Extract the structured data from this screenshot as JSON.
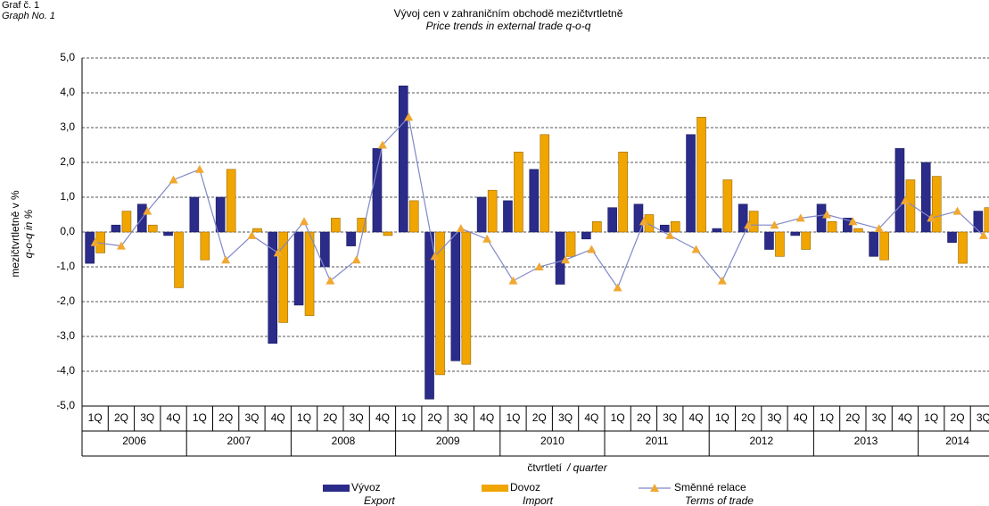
{
  "graph_label": "Graf č. 1",
  "graph_label_en": "Graph No. 1",
  "chart_data": {
    "type": "bar-line",
    "title": "Vývoj cen v zahraničním obchodě mezičtvrtletně",
    "subtitle": "Price trends in external trade q-o-q",
    "y_label": "mezičtvrtletně v %",
    "y_label_en": "q-o-q  in %",
    "x_label": "čtvrtletí",
    "x_label_en": "/ quarter",
    "categories": [
      "1Q",
      "2Q",
      "3Q",
      "4Q",
      "1Q",
      "2Q",
      "3Q",
      "4Q",
      "1Q",
      "2Q",
      "3Q",
      "4Q",
      "1Q",
      "2Q",
      "3Q",
      "4Q",
      "1Q",
      "2Q",
      "3Q",
      "4Q",
      "1Q",
      "2Q",
      "3Q",
      "4Q",
      "1Q",
      "2Q",
      "3Q",
      "4Q",
      "1Q",
      "2Q",
      "3Q",
      "4Q",
      "1Q",
      "2Q",
      "3Q"
    ],
    "years": [
      "2006",
      "2007",
      "2008",
      "2009",
      "2010",
      "2011",
      "2012",
      "2013",
      "2014"
    ],
    "series": [
      {
        "name": "Vývoz",
        "name_en": "Export",
        "kind": "bar",
        "color": "#2b2b8a",
        "values": [
          -0.9,
          0.2,
          0.8,
          -0.1,
          1.0,
          1.0,
          0.0,
          -3.2,
          -2.1,
          -1.0,
          -0.4,
          2.4,
          4.2,
          -4.8,
          -3.7,
          1.0,
          0.9,
          1.8,
          -1.5,
          -0.2,
          0.7,
          0.8,
          0.2,
          2.8,
          0.1,
          0.8,
          -0.5,
          -0.1,
          0.8,
          0.4,
          -0.7,
          2.4,
          2.0,
          -0.3,
          0.6
        ]
      },
      {
        "name": "Dovoz",
        "name_en": "Import",
        "kind": "bar",
        "color": "#f0a500",
        "values": [
          -0.6,
          0.6,
          0.2,
          -1.6,
          -0.8,
          1.8,
          0.1,
          -2.6,
          -2.4,
          0.4,
          0.4,
          -0.1,
          0.9,
          -4.1,
          -3.8,
          1.2,
          2.3,
          2.8,
          -0.7,
          0.3,
          2.3,
          0.5,
          0.3,
          3.3,
          1.5,
          0.6,
          -0.7,
          -0.5,
          0.3,
          0.1,
          -0.8,
          1.5,
          1.6,
          -0.9,
          0.7
        ]
      },
      {
        "name": "Směnné relace",
        "name_en": "Terms of trade",
        "kind": "line",
        "color": "#8088c8",
        "marker_color": "#f0a830",
        "values": [
          -0.3,
          -0.4,
          0.6,
          1.5,
          1.8,
          -0.8,
          -0.1,
          -0.6,
          0.3,
          -1.4,
          -0.8,
          2.5,
          3.3,
          -0.7,
          0.1,
          -0.2,
          -1.4,
          -1.0,
          -0.8,
          -0.5,
          -1.6,
          0.3,
          -0.1,
          -0.5,
          -1.4,
          0.2,
          0.2,
          0.4,
          0.5,
          0.3,
          0.1,
          0.9,
          0.4,
          0.6,
          -0.1
        ]
      }
    ],
    "ylim": [
      -5,
      5
    ],
    "yticks": [
      {
        "value": -5,
        "label": "-5,0"
      },
      {
        "value": -4,
        "label": "-4,0"
      },
      {
        "value": -3,
        "label": "-3,0"
      },
      {
        "value": -2,
        "label": "-2,0"
      },
      {
        "value": -1,
        "label": "-1,0"
      },
      {
        "value": 0,
        "label": "0,0"
      },
      {
        "value": 1,
        "label": "1,0"
      },
      {
        "value": 2,
        "label": "2,0"
      },
      {
        "value": 3,
        "label": "3,0"
      },
      {
        "value": 4,
        "label": "4,0"
      },
      {
        "value": 5,
        "label": "5,0"
      }
    ],
    "grid": true
  }
}
